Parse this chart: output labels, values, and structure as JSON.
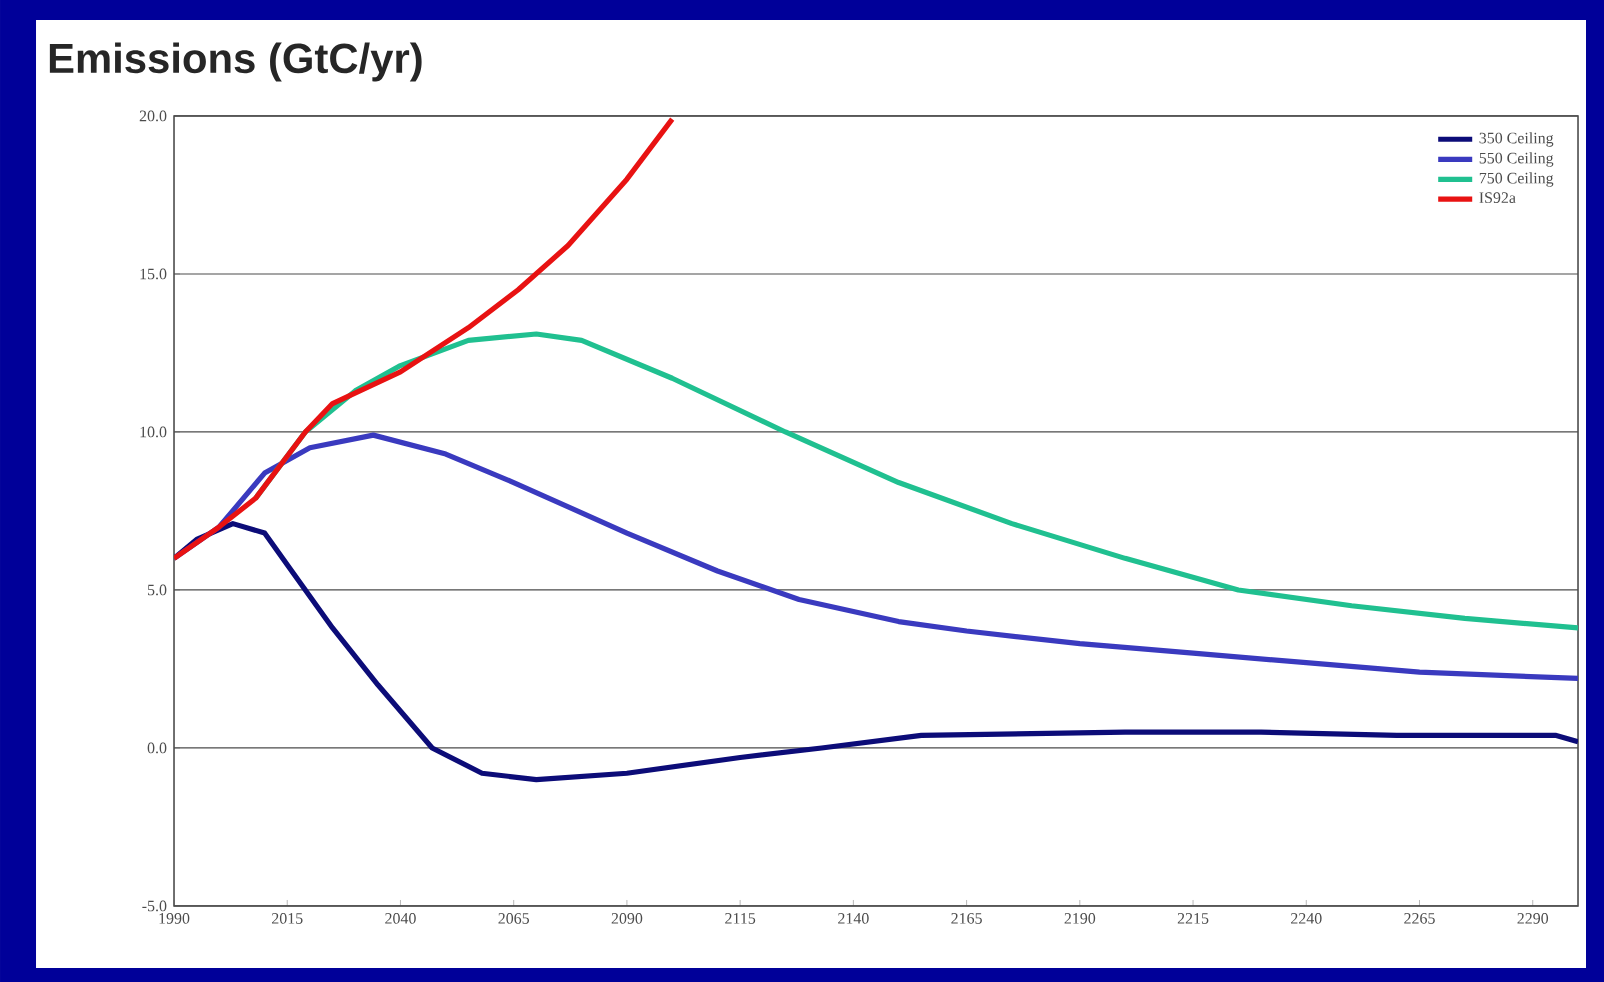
{
  "chart_data": {
    "type": "line",
    "title": "Emissions (GtC/yr)",
    "xlim": [
      1990,
      2300
    ],
    "xticks": [
      1990,
      2015,
      2040,
      2065,
      2090,
      2115,
      2140,
      2165,
      2190,
      2215,
      2240,
      2265,
      2290
    ],
    "ylim": [
      -5,
      20
    ],
    "yticks": [
      {
        "value": -5,
        "label": "-5.0"
      },
      {
        "value": 0,
        "label": "0.0"
      },
      {
        "value": 5,
        "label": "5.0"
      },
      {
        "value": 10,
        "label": "10.0"
      },
      {
        "value": 15,
        "label": "15.0"
      },
      {
        "value": 20,
        "label": "20.0"
      }
    ],
    "grid": "y",
    "legend": "top right",
    "marker": "none",
    "line_style": "solid",
    "series": [
      {
        "name": "350 Ceiling",
        "color": "#0c0c78",
        "x": [
          1990,
          1995,
          2003,
          2010,
          2015,
          2025,
          2035,
          2047,
          2058,
          2070,
          2090,
          2115,
          2133,
          2155,
          2200,
          2230,
          2260,
          2295,
          2300
        ],
        "values": [
          6.0,
          6.6,
          7.1,
          6.8,
          5.8,
          3.8,
          2.0,
          0.0,
          -0.8,
          -1.0,
          -0.8,
          -0.3,
          0.0,
          0.4,
          0.5,
          0.5,
          0.4,
          0.4,
          0.2
        ]
      },
      {
        "name": "550 Ceiling",
        "color": "#3a3abf",
        "x": [
          1990,
          2000,
          2010,
          2020,
          2034,
          2050,
          2065,
          2090,
          2110,
          2128,
          2150,
          2165,
          2190,
          2215,
          2240,
          2265,
          2300
        ],
        "values": [
          6.0,
          7.0,
          8.7,
          9.5,
          9.9,
          9.3,
          8.4,
          6.8,
          5.6,
          4.7,
          4.0,
          3.7,
          3.3,
          3.0,
          2.7,
          2.4,
          2.2
        ]
      },
      {
        "name": "750 Ceiling",
        "color": "#20c090",
        "x": [
          2008,
          2019,
          2030,
          2040,
          2055,
          2070,
          2080,
          2100,
          2125,
          2150,
          2175,
          2200,
          2225,
          2250,
          2275,
          2300
        ],
        "values": [
          7.9,
          10.0,
          11.3,
          12.1,
          12.9,
          13.1,
          12.9,
          11.7,
          10.0,
          8.4,
          7.1,
          6.0,
          5.0,
          4.5,
          4.1,
          3.8
        ]
      },
      {
        "name": "IS92a",
        "color": "#e81212",
        "x": [
          1990,
          2000,
          2008,
          2019,
          2025,
          2040,
          2055,
          2066,
          2077,
          2090,
          2100
        ],
        "values": [
          6.0,
          7.0,
          7.9,
          10.0,
          10.9,
          11.9,
          13.3,
          14.5,
          15.9,
          18.0,
          19.9
        ]
      }
    ]
  }
}
